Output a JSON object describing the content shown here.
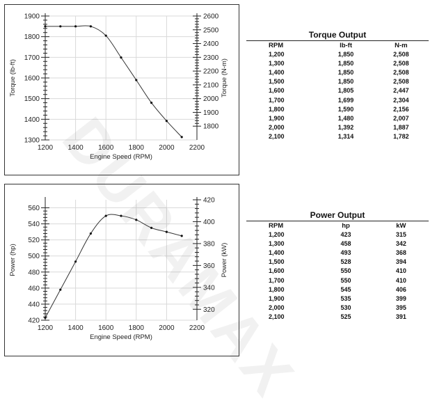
{
  "watermark": "DURAMAX",
  "chart_data": [
    {
      "type": "line",
      "xlabel": "Engine Speed (RPM)",
      "ylabel": "Torque (lb-ft)",
      "y2label": "Torque (N-m)",
      "xlim": [
        1200,
        2200
      ],
      "ylim": [
        1300,
        1900
      ],
      "y2lim": [
        1700,
        2600
      ],
      "xticks": [
        "1200",
        "1400",
        "1600",
        "1800",
        "2000",
        "2200"
      ],
      "yticks": [
        "1300",
        "1400",
        "1500",
        "1600",
        "1700",
        "1800",
        "1900"
      ],
      "y2ticks": [
        "1800",
        "1900",
        "2000",
        "2100",
        "2200",
        "2300",
        "2400",
        "2500",
        "2600"
      ],
      "grid": true,
      "x": [
        1200,
        1300,
        1400,
        1500,
        1600,
        1700,
        1800,
        1900,
        2000,
        2100
      ],
      "series": [
        {
          "values": [
            1850,
            1850,
            1850,
            1850,
            1805,
            1699,
            1590,
            1480,
            1392,
            1314
          ]
        }
      ]
    },
    {
      "type": "line",
      "xlabel": "Engine Speed (RPM)",
      "ylabel": "Power (hp)",
      "y2label": "Power (kW)",
      "xlim": [
        1200,
        2200
      ],
      "ylim": [
        420,
        570
      ],
      "y2lim": [
        310,
        420
      ],
      "xticks": [
        "1200",
        "1400",
        "1600",
        "1800",
        "2000",
        "2200"
      ],
      "yticks": [
        "420",
        "440",
        "460",
        "480",
        "500",
        "520",
        "540",
        "560"
      ],
      "y2ticks": [
        "320",
        "340",
        "360",
        "380",
        "400",
        "420"
      ],
      "grid": true,
      "x": [
        1200,
        1300,
        1400,
        1500,
        1600,
        1700,
        1800,
        1900,
        2000,
        2100
      ],
      "series": [
        {
          "values": [
            423,
            458,
            493,
            528,
            550,
            550,
            545,
            535,
            530,
            525
          ]
        }
      ]
    }
  ],
  "torque_table": {
    "title": "Torque Output",
    "headers": [
      "RPM",
      "lb-ft",
      "N-m"
    ],
    "rows": [
      [
        "1,200",
        "1,850",
        "2,508"
      ],
      [
        "1,300",
        "1,850",
        "2,508"
      ],
      [
        "1,400",
        "1,850",
        "2,508"
      ],
      [
        "1,500",
        "1,850",
        "2,508"
      ],
      [
        "1,600",
        "1,805",
        "2,447"
      ],
      [
        "1,700",
        "1,699",
        "2,304"
      ],
      [
        "1,800",
        "1,590",
        "2,156"
      ],
      [
        "1,900",
        "1,480",
        "2,007"
      ],
      [
        "2,000",
        "1,392",
        "1,887"
      ],
      [
        "2,100",
        "1,314",
        "1,782"
      ]
    ]
  },
  "power_table": {
    "title": "Power Output",
    "headers": [
      "RPM",
      "hp",
      "kW"
    ],
    "rows": [
      [
        "1,200",
        "423",
        "315"
      ],
      [
        "1,300",
        "458",
        "342"
      ],
      [
        "1,400",
        "493",
        "368"
      ],
      [
        "1,500",
        "528",
        "394"
      ],
      [
        "1,600",
        "550",
        "410"
      ],
      [
        "1,700",
        "550",
        "410"
      ],
      [
        "1,800",
        "545",
        "406"
      ],
      [
        "1,900",
        "535",
        "399"
      ],
      [
        "2,000",
        "530",
        "395"
      ],
      [
        "2,100",
        "525",
        "391"
      ]
    ]
  }
}
